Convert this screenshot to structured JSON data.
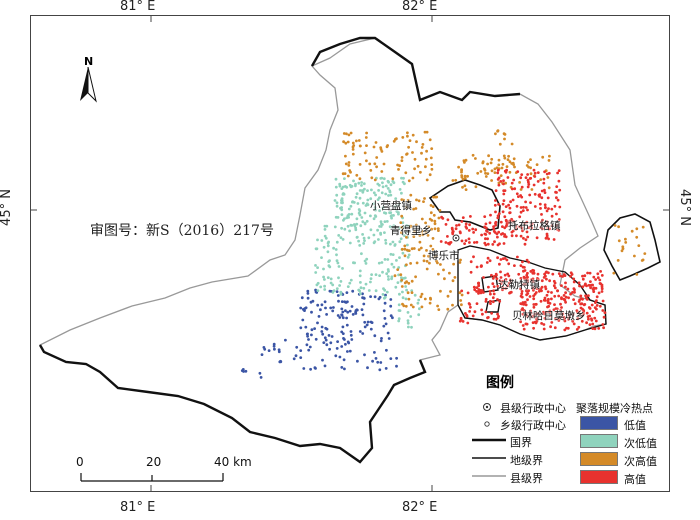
{
  "axes": {
    "top_ticks": [
      "81° E",
      "82° E"
    ],
    "bottom_ticks": [
      "81° E",
      "82° E"
    ],
    "left_tick": "45° N",
    "right_tick": "45° N"
  },
  "approval_number": "审图号：新S（2016）217号",
  "north_arrow": {
    "letter": "N"
  },
  "places": {
    "xiaoyingpan": "小营盘镇",
    "qingdeli": "青得里乡",
    "tuobulage": "托布拉格镇",
    "bole": "博乐市",
    "dalete": "达勒特镇",
    "beisheng": "贝林哈日莫墩乡"
  },
  "legend": {
    "title": "图例",
    "county_center": "县级行政中心",
    "town_center": "乡级行政中心",
    "hotspot_title": "聚落规模冷热点",
    "national_border": "国界",
    "prefecture_border": "地级界",
    "county_border": "县级界",
    "classes": [
      {
        "label": "低值",
        "color": "#3b55a5"
      },
      {
        "label": "次低值",
        "color": "#8fd3bd"
      },
      {
        "label": "次高值",
        "color": "#d48a28"
      },
      {
        "label": "高值",
        "color": "#e8322e"
      }
    ]
  },
  "scale_bar": {
    "ticks": [
      "0",
      "20",
      "40 km"
    ]
  }
}
